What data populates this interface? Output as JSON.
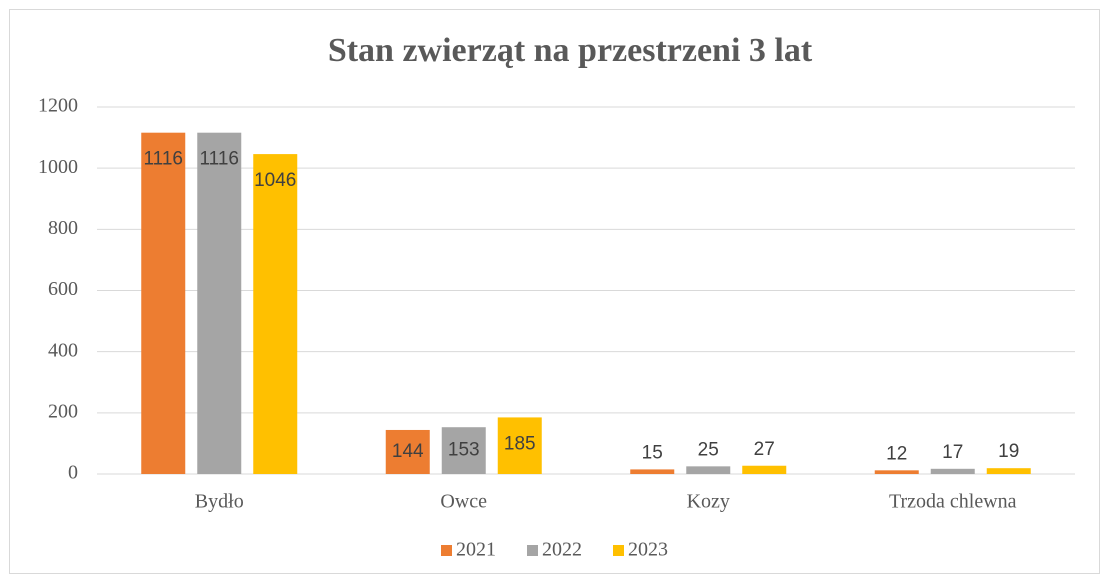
{
  "chart_data": {
    "type": "bar",
    "title": "Stan zwierząt na przestrzeni 3 lat",
    "categories": [
      "Bydło",
      "Owce",
      "Kozy",
      "Trzoda chlewna"
    ],
    "series": [
      {
        "name": "2021",
        "color": "#ed7d31",
        "values": [
          1116,
          144,
          15,
          12
        ]
      },
      {
        "name": "2022",
        "color": "#a5a5a5",
        "values": [
          1116,
          153,
          25,
          17
        ]
      },
      {
        "name": "2023",
        "color": "#ffc000",
        "values": [
          1046,
          185,
          27,
          19
        ]
      }
    ],
    "ylim": [
      0,
      1200
    ],
    "yticks": [
      0,
      200,
      400,
      600,
      800,
      1000,
      1200
    ],
    "grid": true,
    "legend": "bottom"
  }
}
